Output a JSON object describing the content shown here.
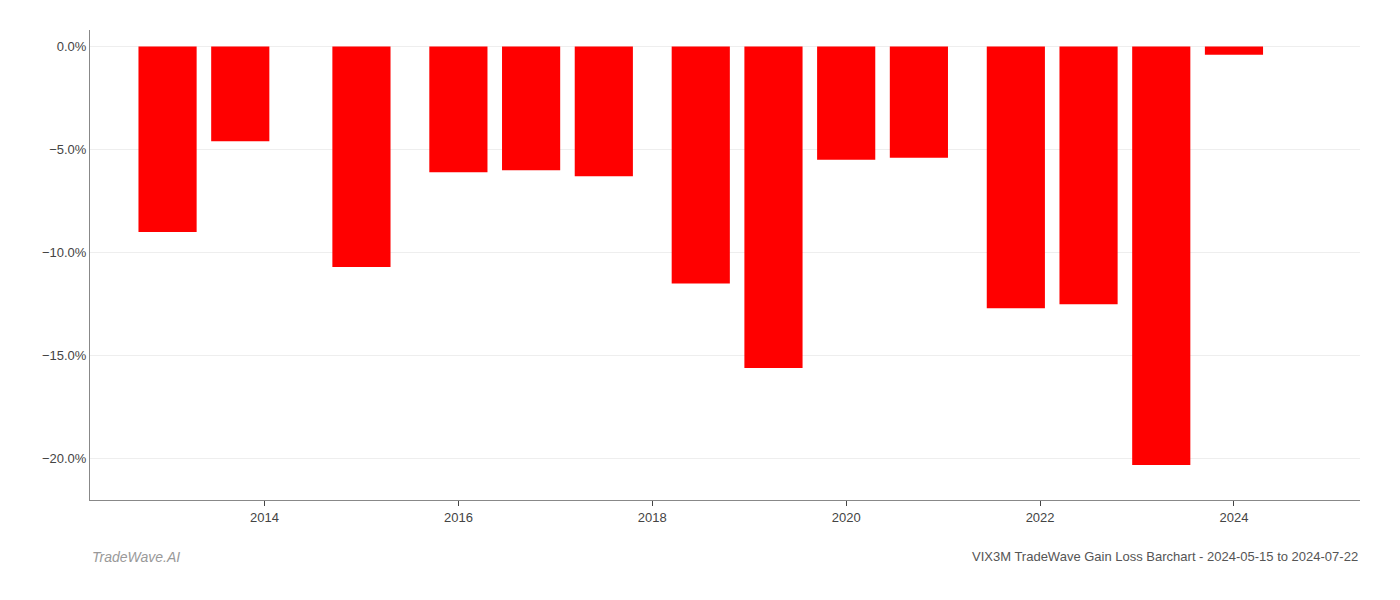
{
  "chart_data": {
    "type": "bar",
    "title": "VIX3M TradeWave Gain Loss Barchart - 2024-05-15 to 2024-07-22",
    "annotations": [
      "TradeWave.AI"
    ],
    "x": [
      2013.0,
      2013.75,
      2015.0,
      2016.0,
      2016.75,
      2017.5,
      2018.5,
      2019.25,
      2020.0,
      2020.75,
      2021.75,
      2022.5,
      2023.25,
      2024.0
    ],
    "values": [
      -9.0,
      -4.6,
      -10.7,
      -6.1,
      -6.0,
      -6.3,
      -11.5,
      -15.6,
      -5.5,
      -5.4,
      -12.7,
      -12.5,
      -20.3,
      -0.4
    ],
    "color": "#ff0000",
    "xlim": [
      2012.2,
      2025.3
    ],
    "xticks": [
      2014,
      2016,
      2018,
      2020,
      2022,
      2024
    ],
    "ylim": [
      -22.0,
      0.8
    ],
    "yticks": [
      {
        "value": 0.0,
        "label": "0.0%"
      },
      {
        "value": -5.0,
        "label": "−5.0%"
      },
      {
        "value": -10.0,
        "label": "−10.0%"
      },
      {
        "value": -15.0,
        "label": "−15.0%"
      },
      {
        "value": -20.0,
        "label": "−20.0%"
      }
    ],
    "grid": true
  }
}
